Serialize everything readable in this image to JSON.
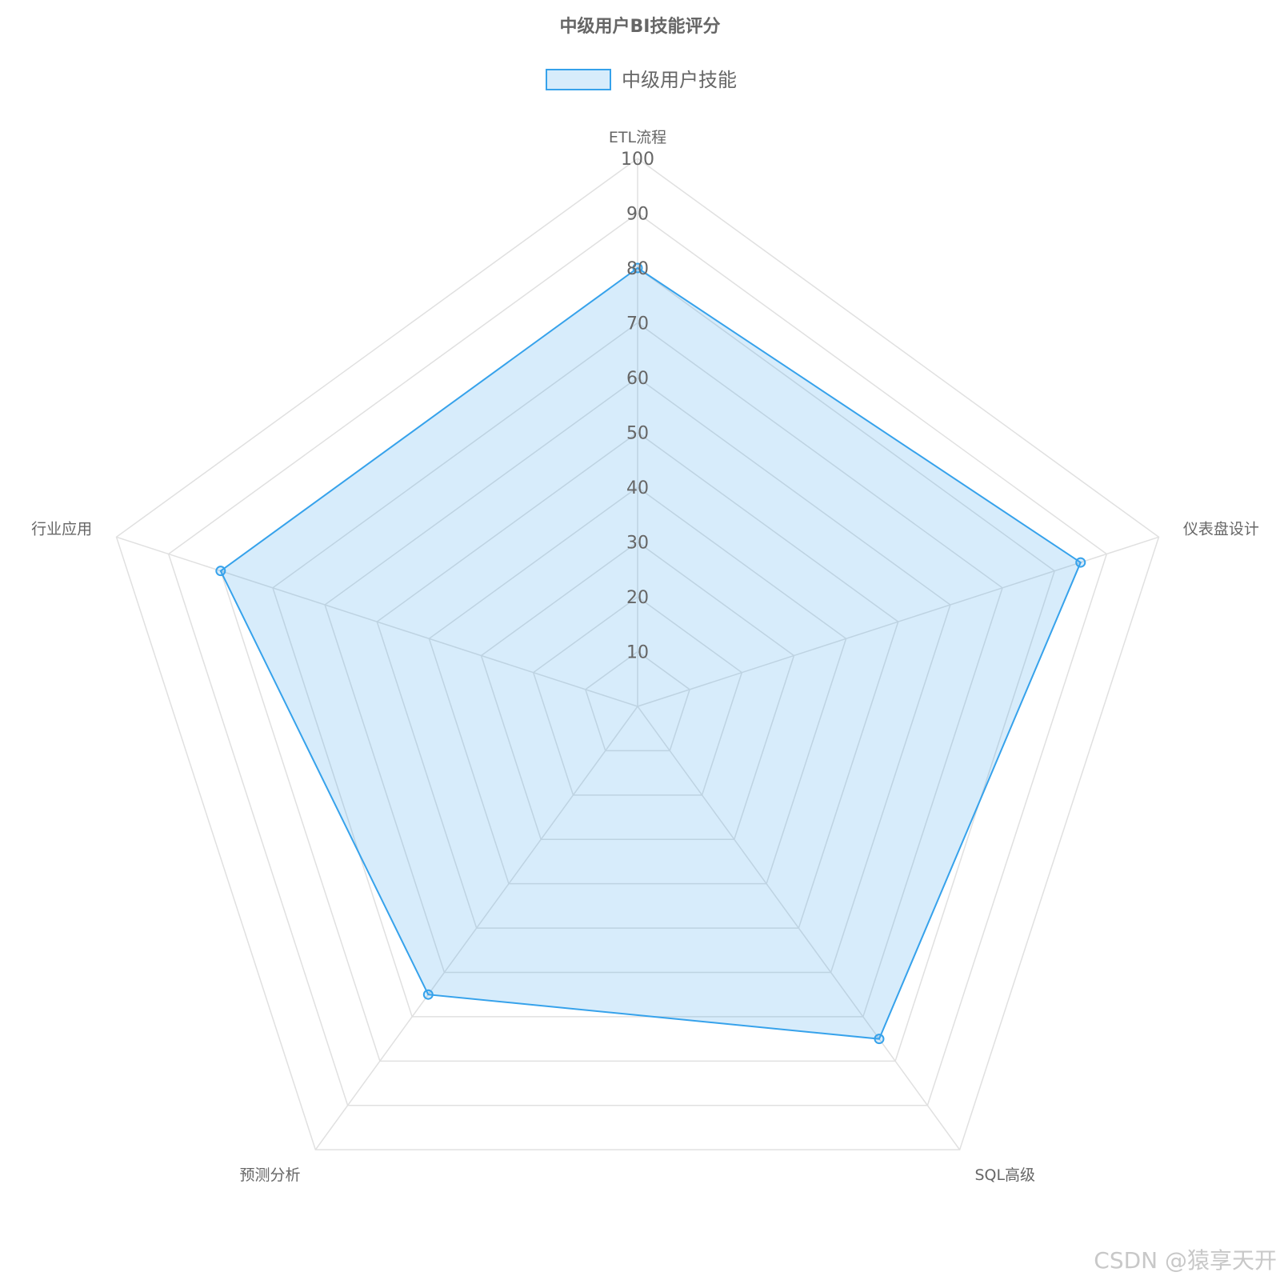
{
  "chart_data": {
    "type": "radar",
    "title": "中级用户BI技能评分",
    "axes": [
      "ETL流程",
      "仪表盘设计",
      "SQL高级",
      "预测分析",
      "行业应用"
    ],
    "ticks": [
      "10",
      "20",
      "30",
      "40",
      "50",
      "60",
      "70",
      "80",
      "90",
      "100"
    ],
    "range": [
      0,
      100
    ],
    "series": [
      {
        "name": "中级用户技能",
        "values": [
          80,
          85,
          75,
          65,
          80
        ]
      }
    ],
    "colors": {
      "line": "#36a2eb",
      "fill": "rgba(54,162,235,0.2)",
      "grid": "#e0e0e0"
    },
    "legend_position": "top",
    "grid": true
  },
  "watermark": "CSDN @猿享天开"
}
